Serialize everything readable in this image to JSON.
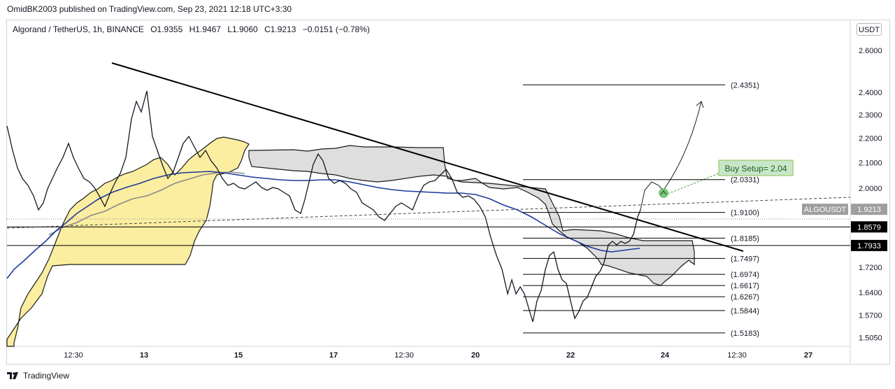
{
  "header": {
    "publish_line": "OmidBK2003 published on TradingView.com, Sep 23, 2021 12:18 UTC+3:30",
    "symbol": "Algorand / TetherUS, 1h, BINANCE",
    "open": "O1.9355",
    "high": "H1.9467",
    "low": "L1.9060",
    "close": "C1.9213",
    "change": "−0.0151 (−0.78%)",
    "unit": "USDT"
  },
  "footer": {
    "brand": "TradingView",
    "logo_icon": "tradingview-logo-icon"
  },
  "chart_data": {
    "type": "line",
    "title": "",
    "xlabel": "",
    "ylabel": "",
    "x_ticks": [
      "12:30",
      "13",
      "15",
      "17",
      "12:30",
      "20",
      "22",
      "24",
      "12:30",
      "27"
    ],
    "y_ticks": [
      "2.6000",
      "2.4000",
      "2.3000",
      "2.2000",
      "2.1000",
      "2.0000",
      "1.7200",
      "1.6400",
      "1.5700",
      "1.5050"
    ],
    "ylim": [
      1.48,
      2.75
    ],
    "y_scale": "log",
    "grid": false,
    "price_labels": [
      {
        "name": "ALGOUSDT",
        "value": "1.9213"
      },
      {
        "name": "",
        "value": "1.8579"
      },
      {
        "name": "",
        "value": "1.7933"
      }
    ],
    "horizontal_lines": [
      1.8579,
      1.7933
    ],
    "fib_levels": [
      {
        "label": "(2.4351)",
        "value": 2.4351
      },
      {
        "label": "(2.0331)",
        "value": 2.0331
      },
      {
        "label": "(1.9100)",
        "value": 1.91
      },
      {
        "label": "(1.8185)",
        "value": 1.8185
      },
      {
        "label": "(1.7497)",
        "value": 1.7497
      },
      {
        "label": "(1.6974)",
        "value": 1.6974
      },
      {
        "label": "(1.6617)",
        "value": 1.6617
      },
      {
        "label": "(1.6267)",
        "value": 1.6267
      },
      {
        "label": "(1.5844)",
        "value": 1.5844
      },
      {
        "label": "(1.5183)",
        "value": 1.5183
      }
    ],
    "annotations": [
      {
        "text": "Buy Setup= 2.04",
        "value": 2.04
      }
    ],
    "colors": {
      "candles": "#131722",
      "ma_blue": "#1e3a9c",
      "ma_gray": "#888888",
      "cloud_yellow": "#fbeea0",
      "cloud_gray": "#dedede",
      "annotation_bg": "#c8e6c9",
      "annotation_text": "#1b5e20",
      "up_arrow_icon": "#43a047"
    }
  }
}
